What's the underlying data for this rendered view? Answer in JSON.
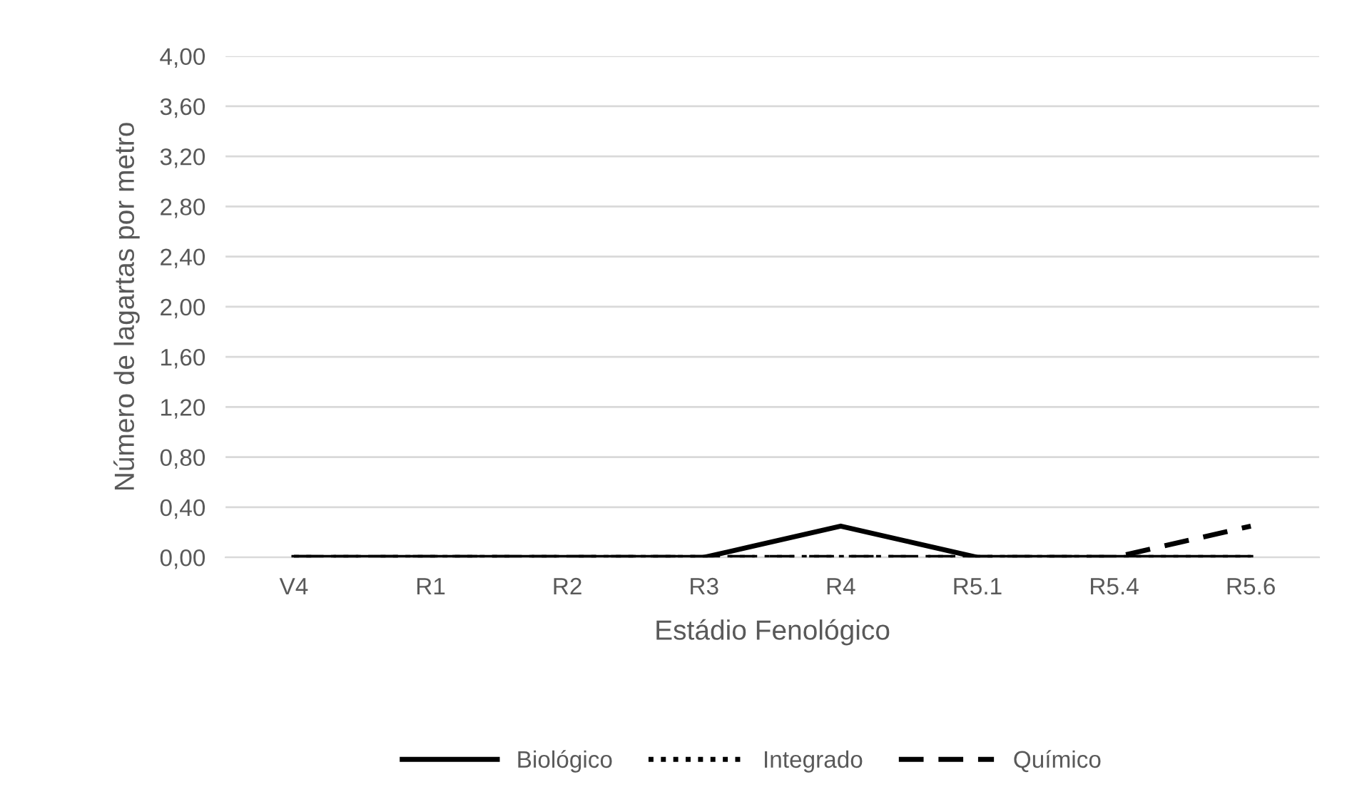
{
  "chart_data": {
    "type": "line",
    "xlabel": "Estádio Fenológico",
    "ylabel": "Número de lagartas por metro",
    "categories": [
      "V4",
      "R1",
      "R2",
      "R3",
      "R4",
      "R5.1",
      "R5.4",
      "R5.6"
    ],
    "series": [
      {
        "name": "Biológico",
        "color": "#000000",
        "line_style": "solid",
        "values": [
          0,
          0,
          0,
          0,
          0.25,
          0,
          0,
          0
        ]
      },
      {
        "name": "Integrado",
        "color": "#000000",
        "line_style": "dotted",
        "values": [
          0,
          0,
          0,
          0,
          0,
          0,
          0,
          0
        ]
      },
      {
        "name": "Químico",
        "color": "#000000",
        "line_style": "dashed",
        "values": [
          0,
          0,
          0,
          0,
          0,
          0,
          0,
          0.25
        ]
      }
    ],
    "ylim": [
      0,
      4
    ],
    "yticks": [
      {
        "value": 0,
        "label": "0,00"
      },
      {
        "value": 0.4,
        "label": "0,40"
      },
      {
        "value": 0.8,
        "label": "0,80"
      },
      {
        "value": 1.2,
        "label": "1,20"
      },
      {
        "value": 1.6,
        "label": "1,60"
      },
      {
        "value": 2.0,
        "label": "2,00"
      },
      {
        "value": 2.4,
        "label": "2,40"
      },
      {
        "value": 2.8,
        "label": "2,80"
      },
      {
        "value": 3.2,
        "label": "3,20"
      },
      {
        "value": 3.6,
        "label": "3,60"
      },
      {
        "value": 4.0,
        "label": "4,00"
      }
    ],
    "grid": "y",
    "legend": "bottom"
  }
}
